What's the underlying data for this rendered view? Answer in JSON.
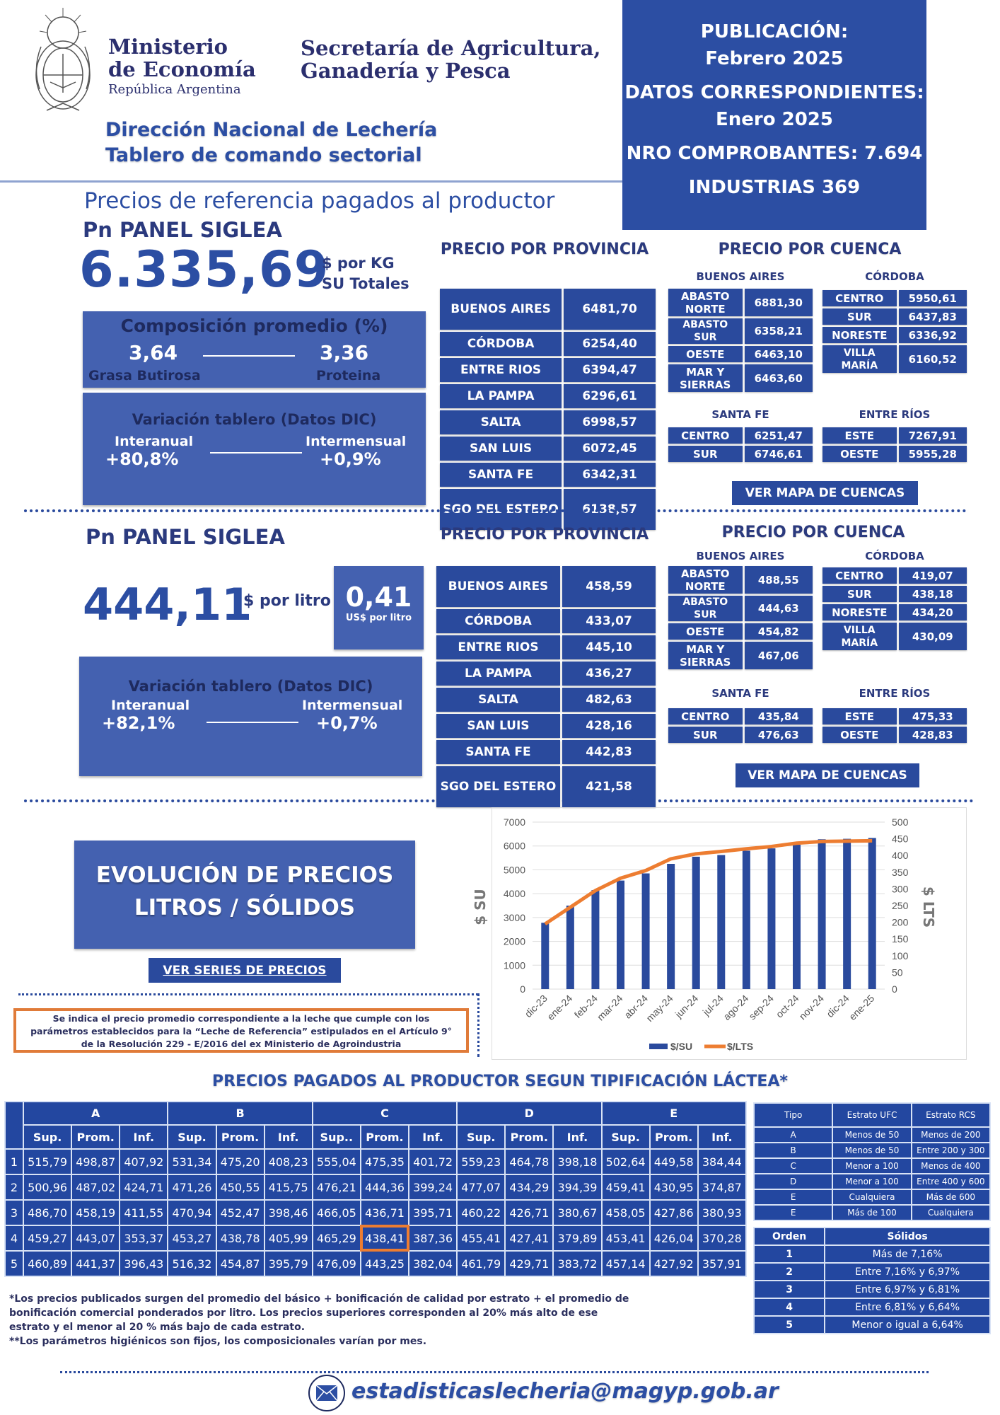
{
  "header": {
    "ministry_line1": "Ministerio",
    "ministry_line2": "de Economía",
    "ministry_line3": "República Argentina",
    "secretaria_line1": "Secretaría de Agricultura,",
    "secretaria_line2": "Ganadería y Pesca",
    "direccion": "Dirección Nacional de Lechería",
    "tablero": "Tablero de comando sectorial"
  },
  "publication": {
    "pub_label": "PUBLICACIÓN:",
    "pub_value": "Febrero 2025",
    "datos_label": "DATOS CORRESPONDIENTES:",
    "datos_value": "Enero 2025",
    "comprobantes": "NRO COMPROBANTES: 7.694",
    "industrias": "INDUSTRIAS 369"
  },
  "page_title": "Precios de referencia pagados al productor",
  "solidos": {
    "panel_title": "Pn PANEL SIGLEA",
    "price": "6.335,69",
    "unit1": "$ por KG",
    "unit2": "SU Totales",
    "composition_title": "Composición promedio (%)",
    "grasa_value": "3,64",
    "grasa_label": "Grasa Butirosa",
    "proteina_value": "3,36",
    "proteina_label": "Proteina",
    "variation_title": "Variación tablero (Datos DIC)",
    "interanual_label": "Interanual",
    "interanual_value": "+80,8%",
    "intermensual_label": "Intermensual",
    "intermensual_value": "+0,9%",
    "provincia_title": "PRECIO POR PROVINCIA",
    "provincias": [
      [
        "BUENOS AIRES",
        "6481,70"
      ],
      [
        "CÓRDOBA",
        "6254,40"
      ],
      [
        "ENTRE RIOS",
        "6394,47"
      ],
      [
        "LA PAMPA",
        "6296,61"
      ],
      [
        "SALTA",
        "6998,57"
      ],
      [
        "SAN LUIS",
        "6072,45"
      ],
      [
        "SANTA FE",
        "6342,31"
      ],
      [
        "SGO DEL ESTERO",
        "6138,57"
      ]
    ],
    "cuenca_title": "PRECIO POR CUENCA",
    "ba_label": "BUENOS AIRES",
    "ba": [
      [
        "ABASTO NORTE",
        "6881,30"
      ],
      [
        "ABASTO SUR",
        "6358,21"
      ],
      [
        "OESTE",
        "6463,10"
      ],
      [
        "MAR Y SIERRAS",
        "6463,60"
      ]
    ],
    "cba_label": "CÓRDOBA",
    "cba": [
      [
        "CENTRO",
        "5950,61"
      ],
      [
        "SUR",
        "6437,83"
      ],
      [
        "NORESTE",
        "6336,92"
      ],
      [
        "VILLA MARÍA",
        "6160,52"
      ]
    ],
    "sf_label": "SANTA FE",
    "sf": [
      [
        "CENTRO",
        "6251,47"
      ],
      [
        "SUR",
        "6746,61"
      ]
    ],
    "er_label": "ENTRE RÍOS",
    "er": [
      [
        "ESTE",
        "7267,91"
      ],
      [
        "OESTE",
        "5955,28"
      ]
    ],
    "map_button": "VER MAPA DE CUENCAS"
  },
  "litros": {
    "panel_title": "Pn PANEL SIGLEA",
    "price": "444,11",
    "unit": "$ por litro",
    "usd_value": "0,41",
    "usd_unit": "US$ por litro",
    "variation_title": "Variación tablero (Datos DIC)",
    "interanual_label": "Interanual",
    "interanual_value": "+82,1%",
    "intermensual_label": "Intermensual",
    "intermensual_value": "+0,7%",
    "provincia_title": "PRECIO POR PROVINCIA",
    "provincias": [
      [
        "BUENOS AIRES",
        "458,59"
      ],
      [
        "CÓRDOBA",
        "433,07"
      ],
      [
        "ENTRE RIOS",
        "445,10"
      ],
      [
        "LA PAMPA",
        "436,27"
      ],
      [
        "SALTA",
        "482,63"
      ],
      [
        "SAN LUIS",
        "428,16"
      ],
      [
        "SANTA FE",
        "442,83"
      ],
      [
        "SGO DEL ESTERO",
        "421,58"
      ]
    ],
    "cuenca_title": "PRECIO POR CUENCA",
    "ba_label": "BUENOS AIRES",
    "ba": [
      [
        "ABASTO NORTE",
        "488,55"
      ],
      [
        "ABASTO SUR",
        "444,63"
      ],
      [
        "OESTE",
        "454,82"
      ],
      [
        "MAR Y SIERRAS",
        "467,06"
      ]
    ],
    "cba_label": "CÓRDOBA",
    "cba": [
      [
        "CENTRO",
        "419,07"
      ],
      [
        "SUR",
        "438,18"
      ],
      [
        "NORESTE",
        "434,20"
      ],
      [
        "VILLA MARÍA",
        "430,09"
      ]
    ],
    "sf_label": "SANTA FE",
    "sf": [
      [
        "CENTRO",
        "435,84"
      ],
      [
        "SUR",
        "476,63"
      ]
    ],
    "er_label": "ENTRE RÍOS",
    "er": [
      [
        "ESTE",
        "475,33"
      ],
      [
        "OESTE",
        "428,83"
      ]
    ],
    "map_button": "VER MAPA DE CUENCAS"
  },
  "evolucion": {
    "title1": "EVOLUCIÓN DE PRECIOS",
    "title2": "LITROS / SÓLIDOS",
    "series_button": "VER SERIES DE PRECIOS",
    "note": "Se indica el precio promedio correspondiente a la leche que cumple con los parámetros establecidos para la “Leche de Referencia” estipulados en el Artículo 9° de la Resolución 229 - E/2016 del ex Ministerio de Agroindustria"
  },
  "chart_data": {
    "type": "bar+line",
    "categories": [
      "dic-23",
      "ene-24",
      "feb-24",
      "mar-24",
      "abr-24",
      "may-24",
      "jun-24",
      "jul-24",
      "ago-24",
      "sep-24",
      "oct-24",
      "nov-24",
      "dic-24",
      "ene-25"
    ],
    "series": [
      {
        "name": "$/SU",
        "type": "bar",
        "axis": "left",
        "color": "#2a4a9d",
        "values": [
          2780,
          3500,
          4150,
          4550,
          4850,
          5250,
          5550,
          5620,
          5800,
          5900,
          6050,
          6280,
          6300,
          6336
        ]
      },
      {
        "name": "$/LTS",
        "type": "line",
        "axis": "right",
        "color": "#ed7d31",
        "values": [
          195,
          245,
          295,
          332,
          355,
          390,
          405,
          412,
          420,
          427,
          437,
          442,
          443,
          444
        ]
      }
    ],
    "ylabel": "$ SU",
    "y2label": "$ LTS",
    "ylim": [
      0,
      7000
    ],
    "y2lim": [
      0,
      500
    ],
    "yticks": [
      "0",
      "1000",
      "2000",
      "3000",
      "4000",
      "5000",
      "6000",
      "7000"
    ],
    "y2ticks": [
      "0",
      "50",
      "100",
      "150",
      "200",
      "250",
      "300",
      "350",
      "400",
      "450",
      "500"
    ],
    "legend": "bottom",
    "grid": true
  },
  "tipificacion": {
    "title": "PRECIOS PAGADOS AL PRODUCTOR SEGUN TIPIFICACIÓN LÁCTEA*",
    "groups": [
      "A",
      "B",
      "C",
      "D",
      "E"
    ],
    "subheaders": [
      "Sup.",
      "Prom.",
      "Inf.",
      "Sup.",
      "Prom.",
      "Inf.",
      "Sup..",
      "Prom.",
      "Inf.",
      "Sup.",
      "Prom.",
      "Inf.",
      "Sup.",
      "Prom.",
      "Inf."
    ],
    "rows": [
      [
        "1",
        "515,79",
        "498,87",
        "407,92",
        "531,34",
        "475,20",
        "408,23",
        "555,04",
        "475,35",
        "401,72",
        "559,23",
        "464,78",
        "398,18",
        "502,64",
        "449,58",
        "384,44"
      ],
      [
        "2",
        "500,96",
        "487,02",
        "424,71",
        "471,26",
        "450,55",
        "415,75",
        "476,21",
        "444,36",
        "399,24",
        "477,07",
        "434,29",
        "394,39",
        "459,41",
        "430,95",
        "374,87"
      ],
      [
        "3",
        "486,70",
        "458,19",
        "411,55",
        "470,94",
        "452,47",
        "398,46",
        "466,05",
        "436,71",
        "395,71",
        "460,22",
        "426,71",
        "380,67",
        "458,05",
        "427,86",
        "380,93"
      ],
      [
        "4",
        "459,27",
        "443,07",
        "353,37",
        "453,27",
        "438,78",
        "405,99",
        "465,29",
        "438,41",
        "387,36",
        "455,41",
        "427,41",
        "379,89",
        "453,41",
        "426,04",
        "370,28"
      ],
      [
        "5",
        "460,89",
        "441,37",
        "396,43",
        "516,32",
        "454,87",
        "395,79",
        "476,09",
        "443,25",
        "382,04",
        "461,79",
        "429,71",
        "383,72",
        "457,14",
        "427,92",
        "357,91"
      ]
    ],
    "highlight_color": "#ed7d31",
    "tipo_headers": [
      "Tipo",
      "Estrato UFC",
      "Estrato RCS"
    ],
    "tipos": [
      [
        "A",
        "Menos de 50",
        "Menos de 200"
      ],
      [
        "B",
        "Menos de 50",
        "Entre 200 y 300"
      ],
      [
        "C",
        "Menor a 100",
        "Menos de 400"
      ],
      [
        "D",
        "Menor a 100",
        "Entre 400 y 600"
      ],
      [
        "E",
        "Cualquiera",
        "Más de 600"
      ],
      [
        "E",
        "Más de 100",
        "Cualquiera"
      ]
    ],
    "orden_headers": [
      "Orden",
      "Sólidos"
    ],
    "ordenes": [
      [
        "1",
        "Más de 7,16%"
      ],
      [
        "2",
        "Entre 7,16% y 6,97%"
      ],
      [
        "3",
        "Entre 6,97% y 6,81%"
      ],
      [
        "4",
        "Entre 6,81% y 6,64%"
      ],
      [
        "5",
        "Menor o igual a 6,64%"
      ]
    ],
    "footnote1": "*Los precios publicados surgen del promedio del básico + bonificación de calidad por estrato + el promedio de bonificación comercial ponderados por litro. Los precios superiores corresponden al 20% más alto de ese estrato y el menor al 20 % más bajo de cada estrato.",
    "footnote2": "**Los parámetros higiénicos son fijos, los composicionales varían por mes."
  },
  "footer": {
    "email": "estadisticaslecheria@magyp.gob.ar"
  }
}
